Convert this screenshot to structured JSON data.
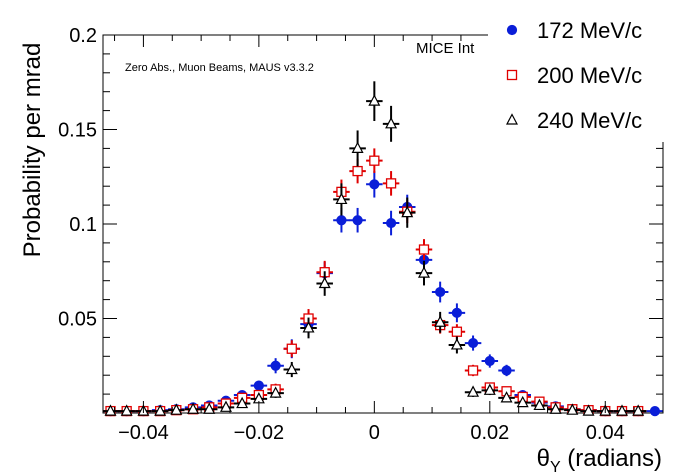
{
  "chart_data": {
    "type": "scatter",
    "title": "",
    "xlabel": "θ_Y (radians)",
    "ylabel": "Probability per mrad",
    "xlim": [
      -0.047,
      0.05
    ],
    "ylim": [
      0,
      0.2
    ],
    "x_ticks": [
      -0.04,
      -0.02,
      0,
      0.02,
      0.04
    ],
    "x_tick_labels": [
      "−0.04",
      "−0.02",
      "0",
      "0.02",
      "0.04"
    ],
    "y_ticks": [
      0.05,
      0.1,
      0.15,
      0.2
    ],
    "y_tick_labels": [
      "0.05",
      "0.1",
      "0.15",
      "0.2"
    ],
    "grid": false,
    "legend_position": "top-right",
    "annotations": {
      "left": "Zero Abs., Muon Beams, MAUS v3.3.2",
      "right": "MICE Int"
    },
    "x_err": 0.00143,
    "series": [
      {
        "name": "172 MeV/c",
        "marker": "filled-circle",
        "color": "#0a1ed8",
        "x": [
          -0.0457,
          -0.0429,
          -0.04,
          -0.0371,
          -0.0343,
          -0.0314,
          -0.0286,
          -0.0257,
          -0.0229,
          -0.02,
          -0.0171,
          -0.0143,
          -0.0114,
          -0.0086,
          -0.0057,
          -0.0029,
          0.0,
          0.0029,
          0.0057,
          0.0086,
          0.0114,
          0.0143,
          0.0171,
          0.02,
          0.0229,
          0.0257,
          0.0286,
          0.0314,
          0.0343,
          0.0371,
          0.04,
          0.0429,
          0.0457,
          0.0486
        ],
        "y": [
          0.001,
          0.001,
          0.001,
          0.0015,
          0.002,
          0.003,
          0.004,
          0.0065,
          0.0095,
          0.0145,
          0.025,
          0.034,
          0.047,
          0.074,
          0.102,
          0.102,
          0.121,
          0.1005,
          0.109,
          0.081,
          0.064,
          0.053,
          0.037,
          0.0275,
          0.0225,
          0.0095,
          0.0055,
          0.0035,
          0.002,
          0.0015,
          0.001,
          0.001,
          0.001,
          0.001
        ],
        "y_err": [
          0.0005,
          0.0005,
          0.0005,
          0.0005,
          0.0007,
          0.001,
          0.001,
          0.0015,
          0.002,
          0.0025,
          0.004,
          0.005,
          0.0055,
          0.006,
          0.0065,
          0.0065,
          0.007,
          0.0065,
          0.0065,
          0.006,
          0.0055,
          0.005,
          0.004,
          0.0035,
          0.003,
          0.002,
          0.0015,
          0.001,
          0.0007,
          0.0005,
          0.0005,
          0.0005,
          0.0005,
          0.0005
        ]
      },
      {
        "name": "200 MeV/c",
        "marker": "open-square",
        "color": "#e00000",
        "x": [
          -0.0457,
          -0.0429,
          -0.04,
          -0.0371,
          -0.0343,
          -0.0314,
          -0.0286,
          -0.0257,
          -0.0229,
          -0.02,
          -0.0171,
          -0.0143,
          -0.0114,
          -0.0086,
          -0.0057,
          -0.0029,
          0.0,
          0.0029,
          0.0057,
          0.0086,
          0.0114,
          0.0143,
          0.0171,
          0.02,
          0.0229,
          0.0257,
          0.0286,
          0.0314,
          0.0343,
          0.0371,
          0.04,
          0.0429,
          0.0457
        ],
        "y": [
          0.001,
          0.001,
          0.001,
          0.001,
          0.0015,
          0.002,
          0.003,
          0.005,
          0.008,
          0.0095,
          0.0125,
          0.034,
          0.05,
          0.0745,
          0.117,
          0.128,
          0.1335,
          0.1215,
          0.1065,
          0.0865,
          0.0465,
          0.043,
          0.0225,
          0.0135,
          0.0115,
          0.0085,
          0.006,
          0.003,
          0.002,
          0.0015,
          0.001,
          0.001,
          0.001
        ],
        "y_err": [
          0.0005,
          0.0005,
          0.0005,
          0.0005,
          0.0005,
          0.0007,
          0.001,
          0.0015,
          0.002,
          0.0025,
          0.003,
          0.0045,
          0.005,
          0.006,
          0.0065,
          0.0065,
          0.0065,
          0.0065,
          0.006,
          0.0055,
          0.0045,
          0.004,
          0.003,
          0.0025,
          0.002,
          0.0015,
          0.001,
          0.001,
          0.0007,
          0.0005,
          0.0005,
          0.0005,
          0.0005
        ]
      },
      {
        "name": "240 MeV/c",
        "marker": "open-triangle",
        "color": "#000000",
        "x": [
          -0.0457,
          -0.0429,
          -0.04,
          -0.0371,
          -0.0343,
          -0.0314,
          -0.0286,
          -0.0257,
          -0.0229,
          -0.02,
          -0.0171,
          -0.0143,
          -0.0114,
          -0.0086,
          -0.0057,
          -0.0029,
          0.0,
          0.0029,
          0.0057,
          0.0086,
          0.0114,
          0.0143,
          0.0171,
          0.02,
          0.0229,
          0.0257,
          0.0286,
          0.0314,
          0.0343,
          0.0371,
          0.04,
          0.0429,
          0.0457
        ],
        "y": [
          0.001,
          0.001,
          0.001,
          0.001,
          0.0015,
          0.002,
          0.002,
          0.003,
          0.005,
          0.0075,
          0.0105,
          0.023,
          0.045,
          0.0685,
          0.113,
          0.14,
          0.165,
          0.153,
          0.106,
          0.074,
          0.048,
          0.036,
          0.011,
          0.012,
          0.008,
          0.0055,
          0.004,
          0.002,
          0.0015,
          0.001,
          0.001,
          0.001,
          0.001
        ],
        "y_err": [
          0.0005,
          0.0005,
          0.0005,
          0.0005,
          0.0005,
          0.0007,
          0.0007,
          0.001,
          0.0015,
          0.002,
          0.0025,
          0.004,
          0.0055,
          0.0065,
          0.0085,
          0.0095,
          0.0105,
          0.0095,
          0.008,
          0.0065,
          0.0055,
          0.0045,
          0.0025,
          0.0025,
          0.002,
          0.0015,
          0.001,
          0.001,
          0.0007,
          0.0005,
          0.0005,
          0.0005,
          0.0005
        ]
      }
    ]
  }
}
